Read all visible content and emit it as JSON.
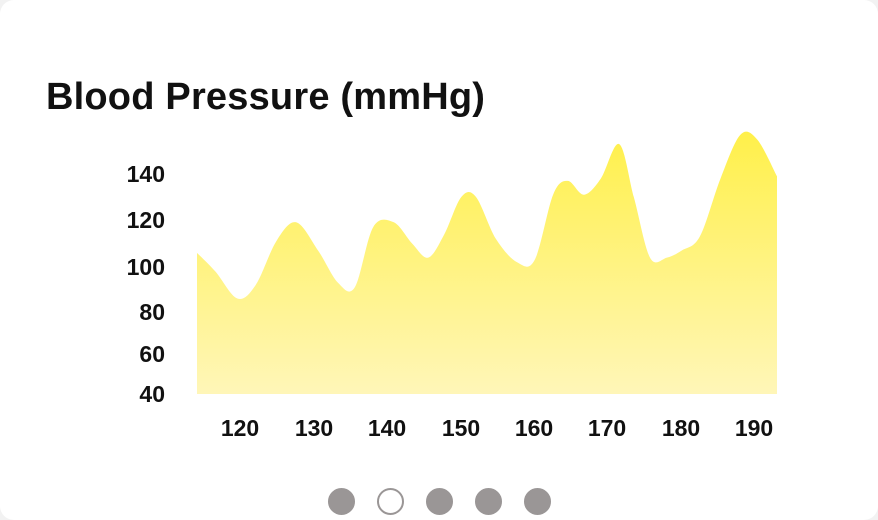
{
  "chart_data": {
    "type": "area",
    "title": "Blood Pressure (mmHg)",
    "xlabel": "",
    "ylabel": "",
    "x_ticks": [
      120,
      130,
      140,
      150,
      160,
      170,
      180,
      190
    ],
    "y_ticks": [
      40,
      60,
      80,
      100,
      120,
      140
    ],
    "grid": false,
    "legend": "none",
    "colors": {
      "fill_top": "#fff04a",
      "fill_bottom": "#fff6b8"
    },
    "series": [
      {
        "x": [
          114,
          116.5,
          119.5,
          122,
          124.8,
          127.5,
          130.5,
          133.2,
          135.5,
          138,
          140.8,
          143.3,
          145.5,
          147.7,
          150,
          152,
          154.7,
          157.6,
          160,
          162.5,
          164.5,
          166.7,
          169,
          171.5,
          173.5,
          175.7,
          178,
          180,
          182.5,
          185.3,
          188,
          190.3,
          193
        ],
        "y": [
          106,
          98,
          86,
          92,
          111,
          119,
          107,
          93,
          91,
          117,
          119,
          110,
          104,
          114,
          130,
          130,
          112,
          102,
          103,
          131,
          137,
          131,
          138,
          153,
          130,
          104,
          104,
          107,
          113,
          138,
          157,
          155,
          139
        ]
      }
    ]
  },
  "pagination": {
    "dots": [
      {
        "state": "inactive"
      },
      {
        "state": "active"
      },
      {
        "state": "inactive"
      },
      {
        "state": "inactive"
      },
      {
        "state": "inactive"
      }
    ]
  }
}
